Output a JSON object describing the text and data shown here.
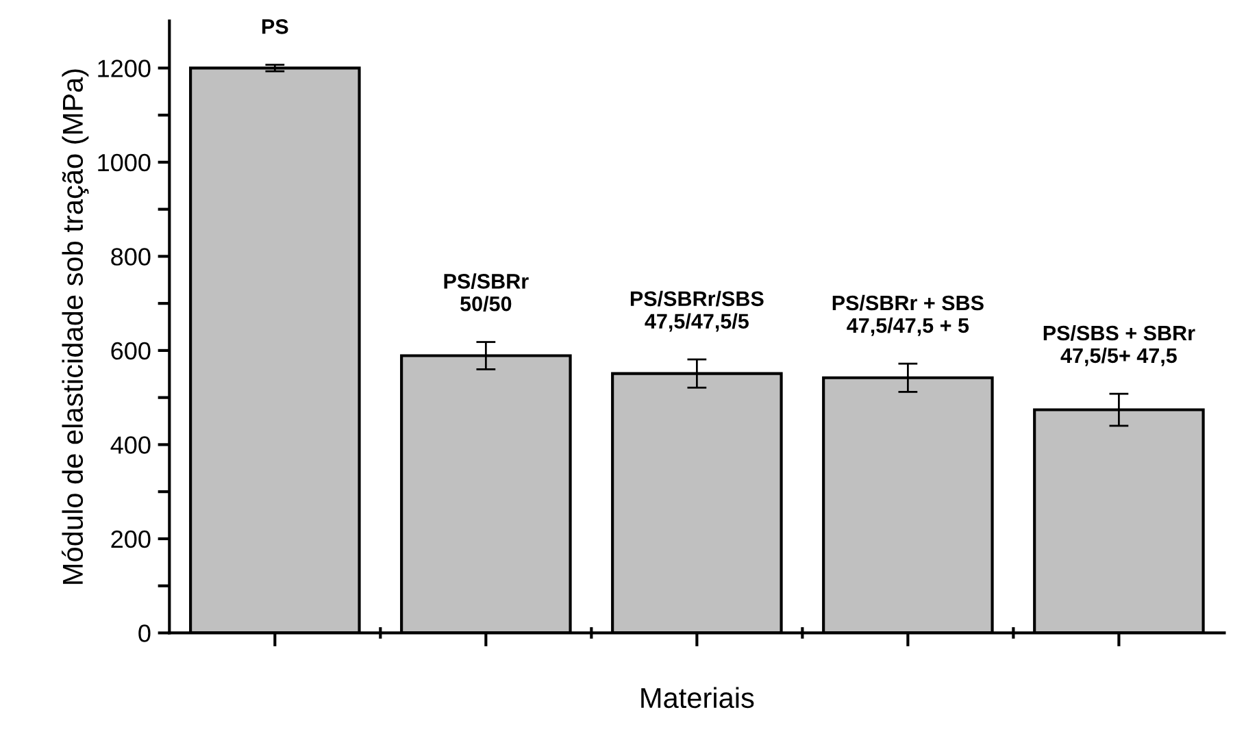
{
  "chart_data": {
    "type": "bar",
    "xlabel": "Materiais",
    "ylabel": "Módulo de elasticidade sob tração (MPa)",
    "categories": [
      null,
      null,
      null,
      null,
      null
    ],
    "values": [
      1200,
      589,
      551,
      542,
      474
    ],
    "errors": [
      7,
      29,
      30,
      30,
      34
    ],
    "color": "#c0c0c0",
    "ylim": [
      0,
      1300
    ],
    "yticks": [
      0,
      {
        "value": 100,
        "label": null
      },
      200,
      {
        "value": 300,
        "label": null
      },
      400,
      {
        "value": 500,
        "label": null
      },
      600,
      {
        "value": 700,
        "label": null
      },
      800,
      {
        "value": 900,
        "label": null
      },
      1000,
      {
        "value": 1100,
        "label": null
      },
      1200
    ],
    "annotations": [
      "PS",
      "PS/SBRr\n50/50",
      "PS/SBRr/SBS\n47,5/47,5/5",
      "PS/SBRr + SBS\n47,5/47,5 + 5",
      "PS/SBS + SBRr\n47,5/5+ 47,5"
    ],
    "grid": false
  }
}
